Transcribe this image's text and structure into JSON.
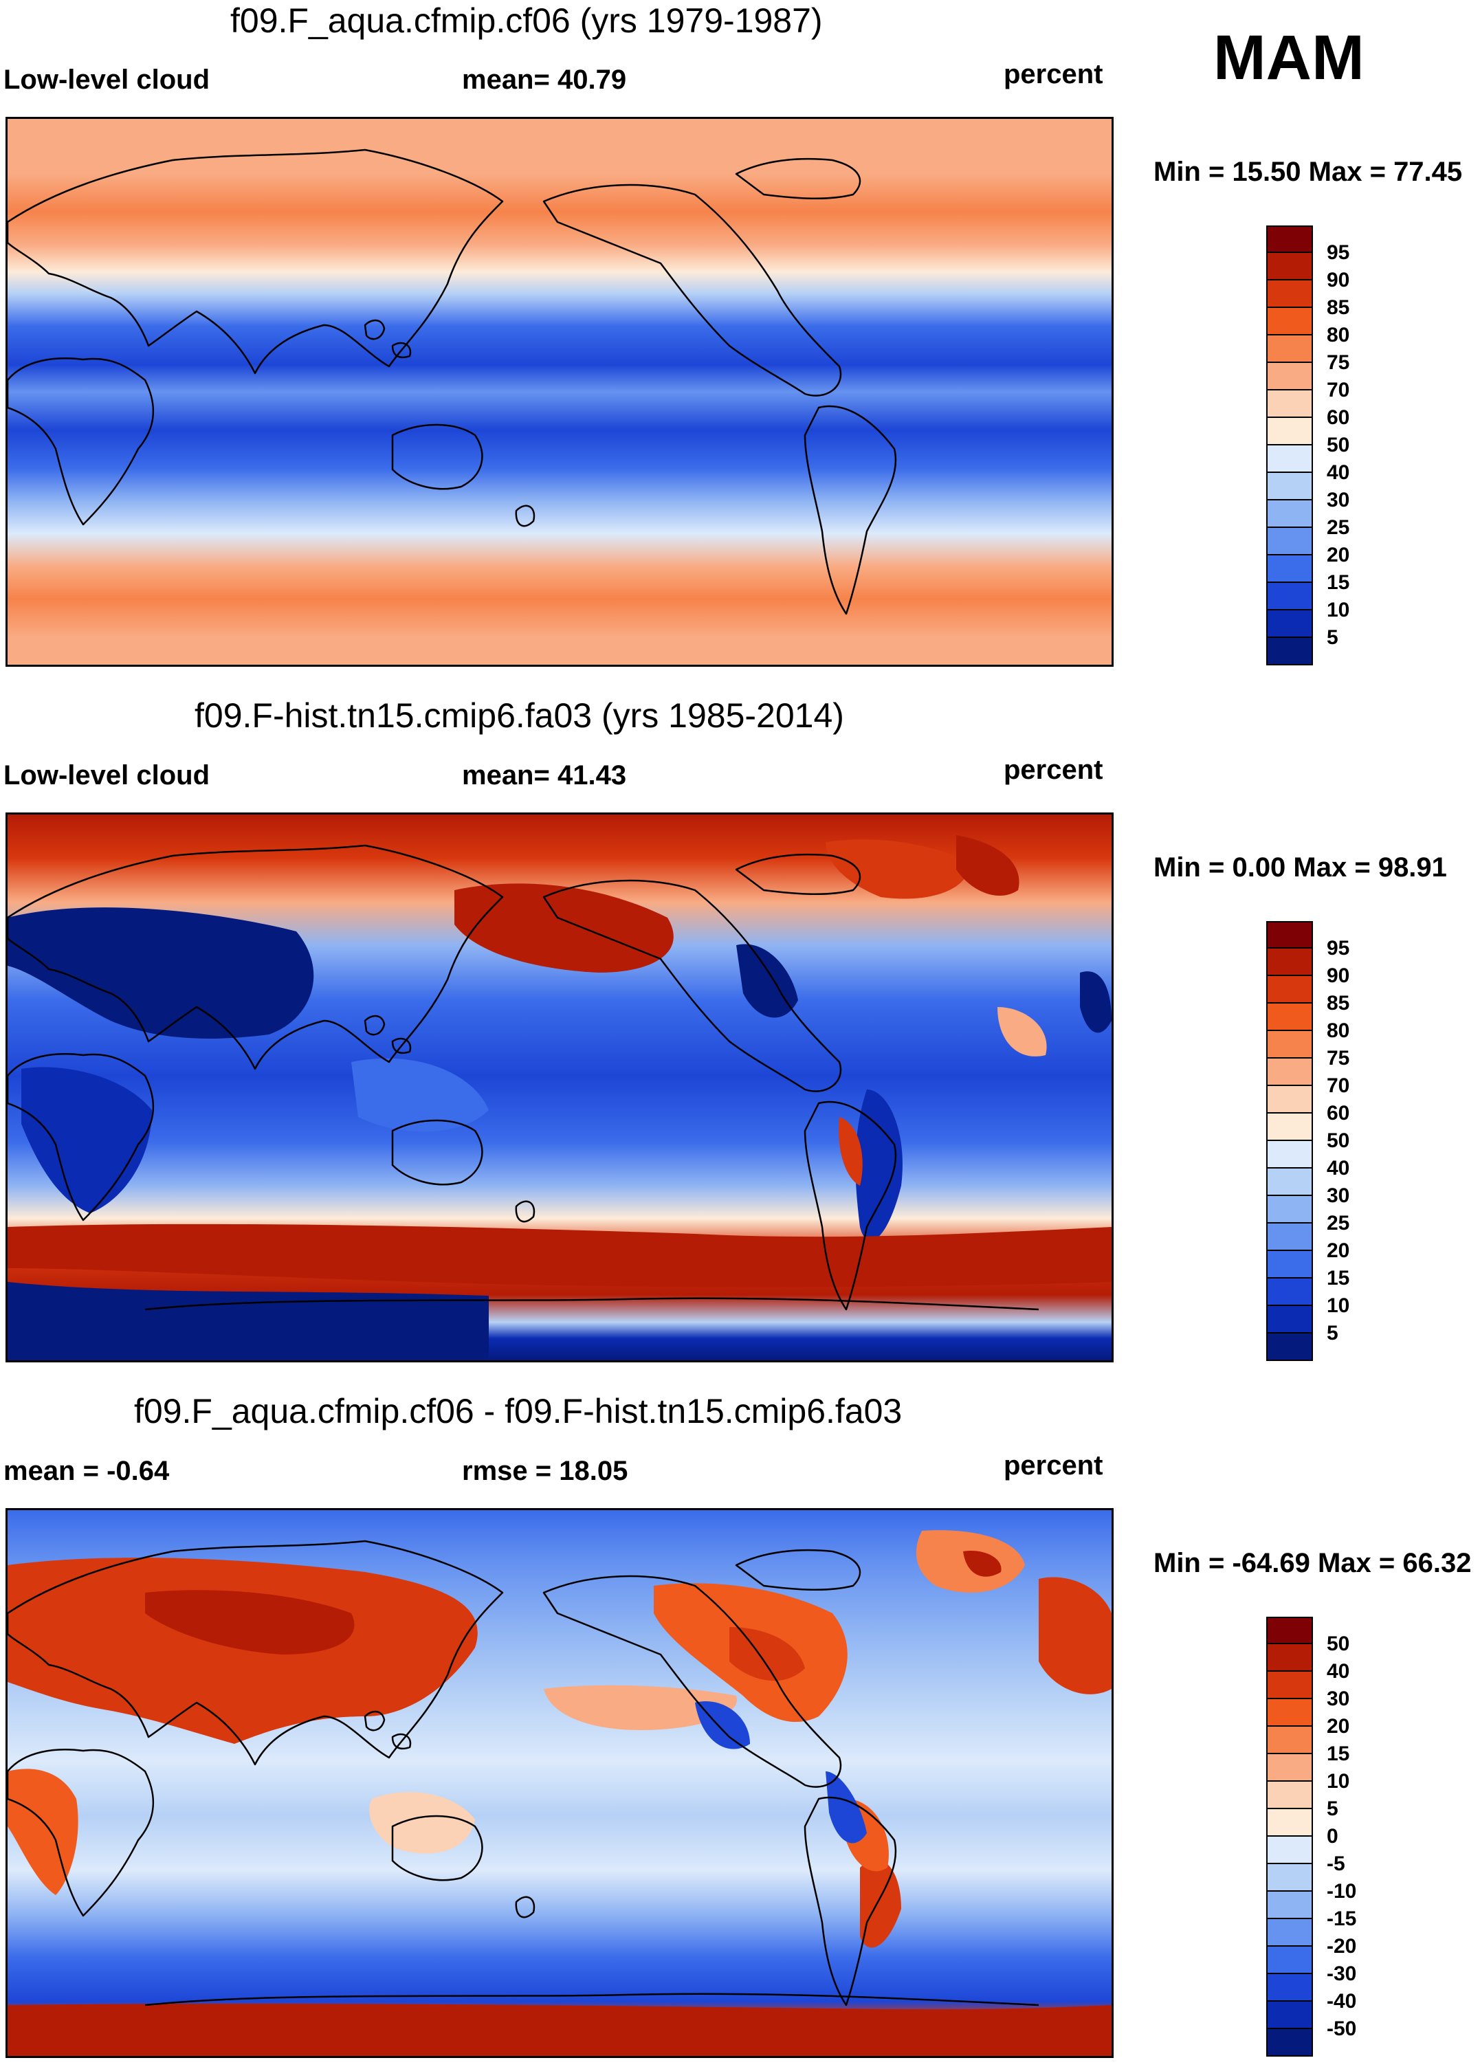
{
  "season": "MAM",
  "panels": [
    {
      "title": "f09.F_aqua.cfmip.cf06 (yrs 1979-1987)",
      "left_label": "Low-level cloud",
      "center_label": "mean=  40.79",
      "right_label": "percent",
      "minmax": "Min =  15.50 Max =  77.45",
      "colorbar": {
        "labels": [
          "95",
          "90",
          "85",
          "80",
          "75",
          "70",
          "60",
          "50",
          "40",
          "30",
          "25",
          "20",
          "15",
          "10",
          "5"
        ],
        "colors": [
          "#7e0205",
          "#b41c06",
          "#d8380e",
          "#f05a1d",
          "#f6834b",
          "#f9ab83",
          "#fcd2b6",
          "#fdebd8",
          "#dceafb",
          "#b6d1f6",
          "#8fb4f3",
          "#6693f0",
          "#3b6cea",
          "#1d46d6",
          "#0b2bb2",
          "#051a7d"
        ]
      }
    },
    {
      "title": "f09.F-hist.tn15.cmip6.fa03 (yrs 1985-2014)",
      "left_label": "Low-level cloud",
      "center_label": "mean=  41.43",
      "right_label": "percent",
      "minmax": "Min =   0.00 Max =  98.91",
      "colorbar": {
        "labels": [
          "95",
          "90",
          "85",
          "80",
          "75",
          "70",
          "60",
          "50",
          "40",
          "30",
          "25",
          "20",
          "15",
          "10",
          "5"
        ],
        "colors": [
          "#7e0205",
          "#b41c06",
          "#d8380e",
          "#f05a1d",
          "#f6834b",
          "#f9ab83",
          "#fcd2b6",
          "#fdebd8",
          "#dceafb",
          "#b6d1f6",
          "#8fb4f3",
          "#6693f0",
          "#3b6cea",
          "#1d46d6",
          "#0b2bb2",
          "#051a7d"
        ]
      }
    },
    {
      "title": "f09.F_aqua.cfmip.cf06 - f09.F-hist.tn15.cmip6.fa03",
      "left_label": "mean =  -0.64",
      "center_label": "rmse =  18.05",
      "right_label": "percent",
      "minmax": "Min = -64.69 Max =  66.32",
      "colorbar": {
        "labels": [
          "50",
          "40",
          "30",
          "20",
          "15",
          "10",
          "5",
          "0",
          "-5",
          "-10",
          "-15",
          "-20",
          "-30",
          "-40",
          "-50"
        ],
        "colors": [
          "#7e0205",
          "#b41c06",
          "#d8380e",
          "#f05a1d",
          "#f6834b",
          "#f9ab83",
          "#fcd2b6",
          "#fdebd8",
          "#dceafb",
          "#b6d1f6",
          "#8fb4f3",
          "#6693f0",
          "#3b6cea",
          "#1d46d6",
          "#0b2bb2",
          "#051a7d"
        ]
      }
    }
  ]
}
